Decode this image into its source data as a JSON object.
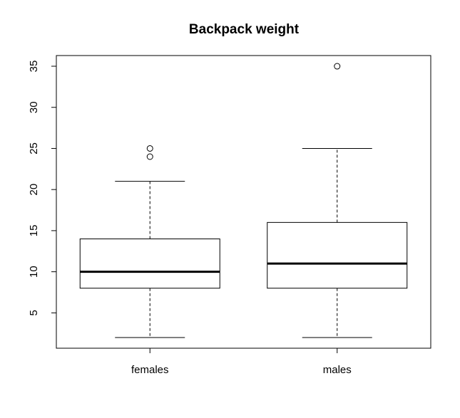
{
  "chart_data": {
    "type": "boxplot",
    "title": "Backpack weight",
    "xlabel": "",
    "ylabel": "",
    "categories": [
      "females",
      "males"
    ],
    "ylim": [
      0.7,
      36.3
    ],
    "yticks": [
      5,
      10,
      15,
      20,
      25,
      30,
      35
    ],
    "grid": false,
    "legend": "none",
    "boxes": [
      {
        "category": "females",
        "whisker_low": 2,
        "q1": 8,
        "median": 10,
        "q3": 14,
        "whisker_high": 21,
        "outliers": [
          24,
          25
        ]
      },
      {
        "category": "males",
        "whisker_low": 2,
        "q1": 8,
        "median": 11,
        "q3": 16,
        "whisker_high": 25,
        "outliers": [
          35
        ]
      }
    ]
  }
}
